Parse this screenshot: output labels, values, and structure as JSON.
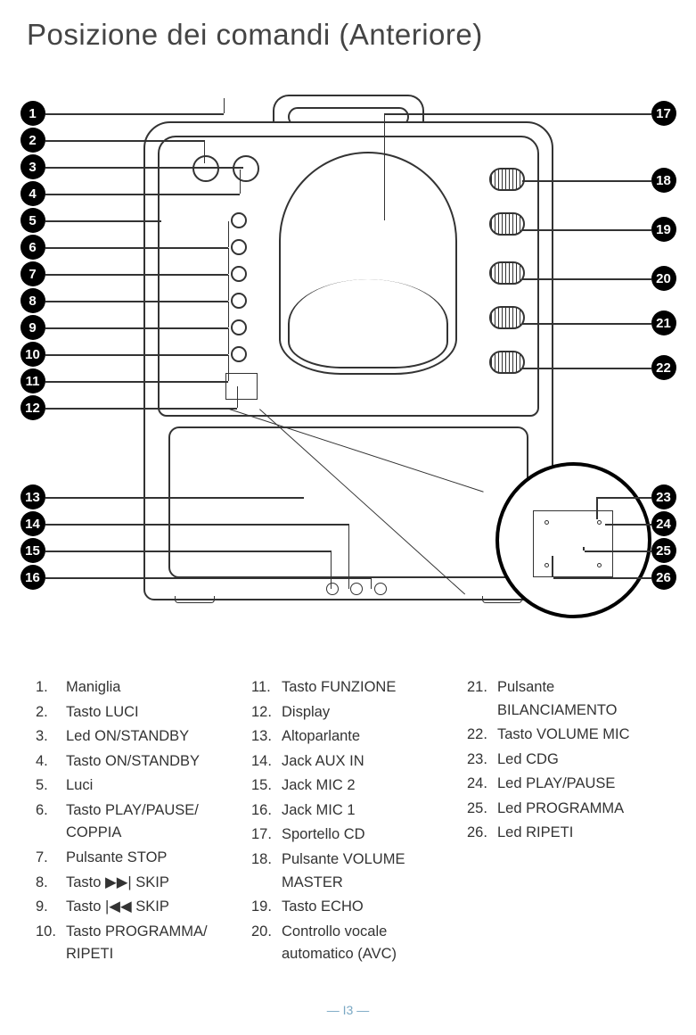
{
  "title": "Posizione dei comandi (Anteriore)",
  "page_number": "— I3 —",
  "callouts_left": [
    1,
    2,
    3,
    4,
    5,
    6,
    7,
    8,
    9,
    10,
    11,
    12,
    13,
    14,
    15,
    16
  ],
  "callouts_right_top": [
    17,
    18,
    19,
    20,
    21,
    22
  ],
  "callouts_right_bottom": [
    23,
    24,
    25,
    26
  ],
  "styling": {
    "callout_bg": "#000000",
    "callout_fg": "#ffffff",
    "line_color": "#333333",
    "title_color": "#444444",
    "footer_color": "#7aa8c4",
    "background": "#ffffff"
  },
  "legend": {
    "col1": [
      {
        "n": "1.",
        "t": "Maniglia"
      },
      {
        "n": "2.",
        "t": "Tasto LUCI"
      },
      {
        "n": "3.",
        "t": "Led ON/STANDBY"
      },
      {
        "n": "4.",
        "t": "Tasto ON/STANDBY"
      },
      {
        "n": "5.",
        "t": "Luci"
      },
      {
        "n": "6.",
        "t": "Tasto PLAY/PAUSE/ COPPIA"
      },
      {
        "n": "7.",
        "t": "Pulsante STOP"
      },
      {
        "n": "8.",
        "t": "Tasto ▶▶| SKIP"
      },
      {
        "n": "9.",
        "t": "Tasto |◀◀ SKIP"
      },
      {
        "n": "10.",
        "t": "Tasto PROGRAMMA/ RIPETI"
      }
    ],
    "col2": [
      {
        "n": "11.",
        "t": "Tasto FUNZIONE"
      },
      {
        "n": "12.",
        "t": "Display"
      },
      {
        "n": "13.",
        "t": "Altoparlante"
      },
      {
        "n": "14.",
        "t": "Jack AUX IN"
      },
      {
        "n": "15.",
        "t": "Jack MIC 2"
      },
      {
        "n": "16.",
        "t": "Jack MIC 1"
      },
      {
        "n": "17.",
        "t": "Sportello CD"
      },
      {
        "n": "18.",
        "t": "Pulsante VOLUME MASTER"
      },
      {
        "n": "19.",
        "t": "Tasto ECHO"
      },
      {
        "n": "20.",
        "t": "Controllo vocale automatico (AVC)"
      }
    ],
    "col3": [
      {
        "n": "21.",
        "t": "Pulsante BILANCIAMENTO"
      },
      {
        "n": "22.",
        "t": "Tasto VOLUME MIC"
      },
      {
        "n": "23.",
        "t": "Led CDG"
      },
      {
        "n": "24.",
        "t": "Led PLAY/PAUSE"
      },
      {
        "n": "25.",
        "t": "Led PROGRAMMA"
      },
      {
        "n": "26.",
        "t": "Led RIPETI"
      }
    ]
  }
}
